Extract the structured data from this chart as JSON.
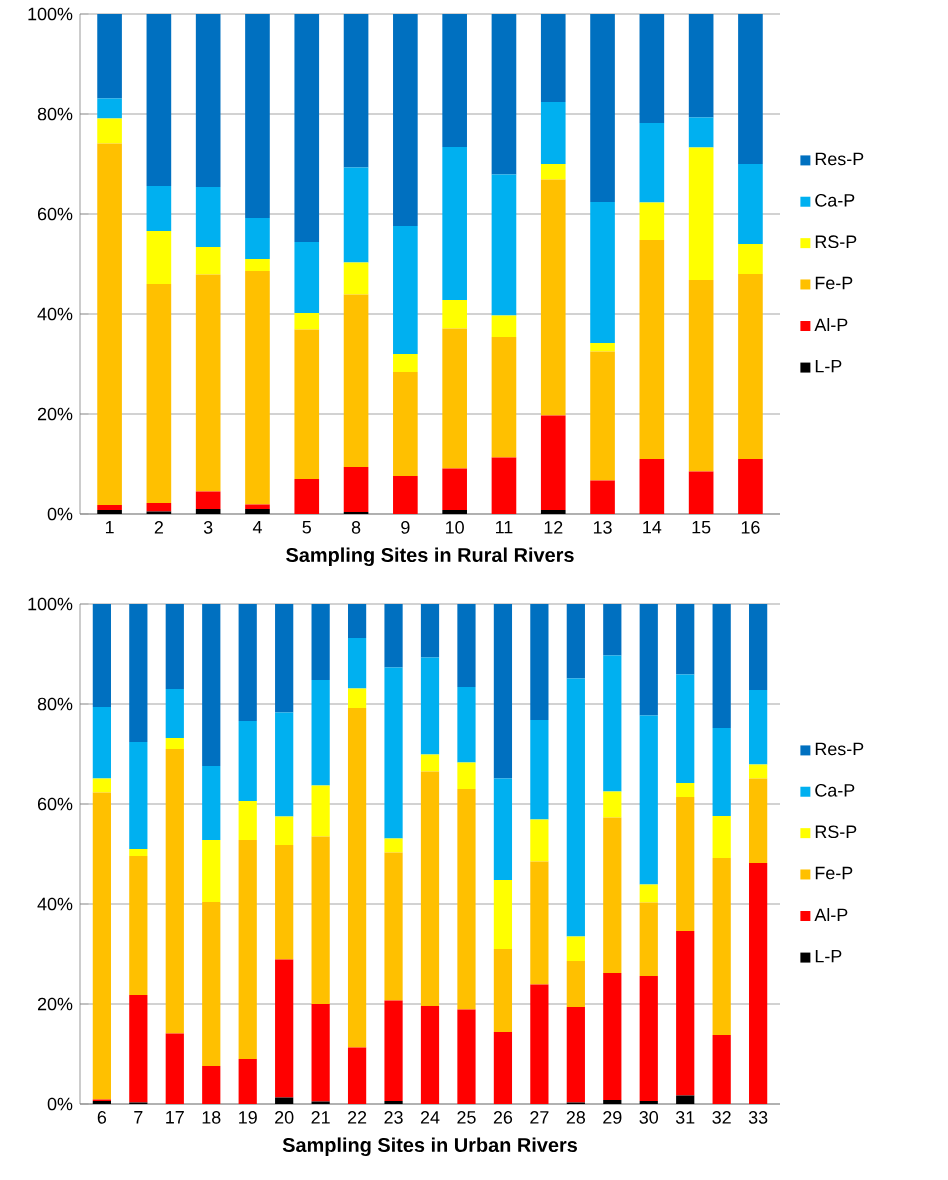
{
  "chart_data": [
    {
      "type": "bar",
      "stacked": true,
      "xlabel": "Sampling Sites in Rural Rivers",
      "categories": [
        "1",
        "2",
        "3",
        "4",
        "5",
        "8",
        "9",
        "10",
        "11",
        "12",
        "13",
        "14",
        "15",
        "16"
      ],
      "ylim": [
        0,
        100
      ],
      "yticks": [
        {
          "value": 0,
          "label": "0%"
        },
        {
          "value": 20,
          "label": "20%"
        },
        {
          "value": 40,
          "label": "40%"
        },
        {
          "value": 60,
          "label": "60%"
        },
        {
          "value": 80,
          "label": "80%"
        },
        {
          "value": 100,
          "label": "100%"
        }
      ],
      "grid": "y",
      "legend": "right",
      "series": [
        {
          "name": "L-P",
          "color": "#000000",
          "values": [
            0.8,
            0.5,
            1.0,
            1.0,
            0,
            0.4,
            0,
            0.8,
            0,
            0.8,
            0,
            0,
            0,
            0
          ]
        },
        {
          "name": "Al-P",
          "color": "#ff0000",
          "values": [
            1.0,
            1.7,
            3.5,
            0.9,
            7.0,
            9.0,
            7.6,
            8.3,
            11.3,
            18.9,
            6.7,
            11.0,
            8.5,
            11.0
          ]
        },
        {
          "name": "Fe-P",
          "color": "#ffc000",
          "values": [
            72.3,
            43.8,
            43.4,
            46.7,
            29.9,
            34.5,
            20.8,
            28.0,
            24.1,
            47.2,
            25.8,
            43.8,
            38.3,
            37.0
          ]
        },
        {
          "name": "RS-P",
          "color": "#ffff00",
          "values": [
            5.0,
            10.6,
            5.5,
            2.4,
            3.3,
            6.4,
            3.6,
            5.7,
            4.3,
            3.1,
            1.7,
            7.5,
            26.5,
            6.0
          ]
        },
        {
          "name": "Ca-P",
          "color": "#00b0f0",
          "values": [
            4.0,
            9.0,
            12.0,
            8.2,
            14.2,
            19.0,
            25.6,
            30.6,
            28.2,
            12.4,
            28.2,
            15.9,
            6.0,
            16.0
          ]
        },
        {
          "name": "Res-P",
          "color": "#0070c0",
          "values": [
            16.9,
            34.4,
            34.6,
            40.8,
            45.6,
            30.7,
            42.4,
            26.6,
            32.1,
            17.6,
            37.6,
            21.8,
            20.7,
            30.0
          ]
        }
      ]
    },
    {
      "type": "bar",
      "stacked": true,
      "xlabel": "Sampling Sites in Urban Rivers",
      "categories": [
        "6",
        "7",
        "17",
        "18",
        "19",
        "20",
        "21",
        "22",
        "23",
        "24",
        "25",
        "26",
        "27",
        "28",
        "29",
        "30",
        "31",
        "32",
        "33"
      ],
      "ylim": [
        0,
        100
      ],
      "yticks": [
        {
          "value": 0,
          "label": "0%"
        },
        {
          "value": 20,
          "label": "20%"
        },
        {
          "value": 40,
          "label": "40%"
        },
        {
          "value": 60,
          "label": "60%"
        },
        {
          "value": 80,
          "label": "80%"
        },
        {
          "value": 100,
          "label": "100%"
        }
      ],
      "grid": "y",
      "legend": "right",
      "series": [
        {
          "name": "L-P",
          "color": "#000000",
          "values": [
            0.6,
            0.3,
            0,
            0,
            0,
            1.3,
            0.5,
            0,
            0.6,
            0,
            0,
            0,
            0,
            0.3,
            0.8,
            0.6,
            1.7,
            0,
            0
          ]
        },
        {
          "name": "Al-P",
          "color": "#ff0000",
          "values": [
            0.3,
            21.5,
            14.1,
            7.6,
            9.0,
            27.6,
            19.5,
            11.3,
            20.1,
            19.6,
            18.9,
            14.4,
            23.9,
            19.1,
            25.4,
            25.0,
            32.9,
            13.8,
            48.2
          ]
        },
        {
          "name": "Fe-P",
          "color": "#ffc000",
          "values": [
            61.4,
            27.8,
            56.9,
            32.8,
            43.8,
            22.9,
            33.5,
            67.9,
            29.6,
            46.9,
            44.1,
            16.6,
            24.6,
            9.2,
            31.1,
            14.7,
            26.8,
            35.4,
            16.9
          ]
        },
        {
          "name": "RS-P",
          "color": "#ffff00",
          "values": [
            2.8,
            1.4,
            2.2,
            12.4,
            7.8,
            5.7,
            10.2,
            3.9,
            2.8,
            3.4,
            5.3,
            13.8,
            8.4,
            4.9,
            5.2,
            3.6,
            2.8,
            8.4,
            2.8
          ]
        },
        {
          "name": "Ca-P",
          "color": "#00b0f0",
          "values": [
            14.3,
            21.4,
            9.8,
            14.8,
            16.0,
            20.8,
            21.1,
            10.1,
            34.2,
            19.4,
            15.1,
            20.3,
            19.9,
            51.6,
            27.2,
            33.8,
            21.7,
            17.6,
            14.9
          ]
        },
        {
          "name": "Res-P",
          "color": "#0070c0",
          "values": [
            20.6,
            27.6,
            17.0,
            32.4,
            23.4,
            21.7,
            15.2,
            6.8,
            12.7,
            10.7,
            16.6,
            34.9,
            23.2,
            14.9,
            10.3,
            22.3,
            14.1,
            24.8,
            17.2
          ]
        }
      ]
    }
  ]
}
